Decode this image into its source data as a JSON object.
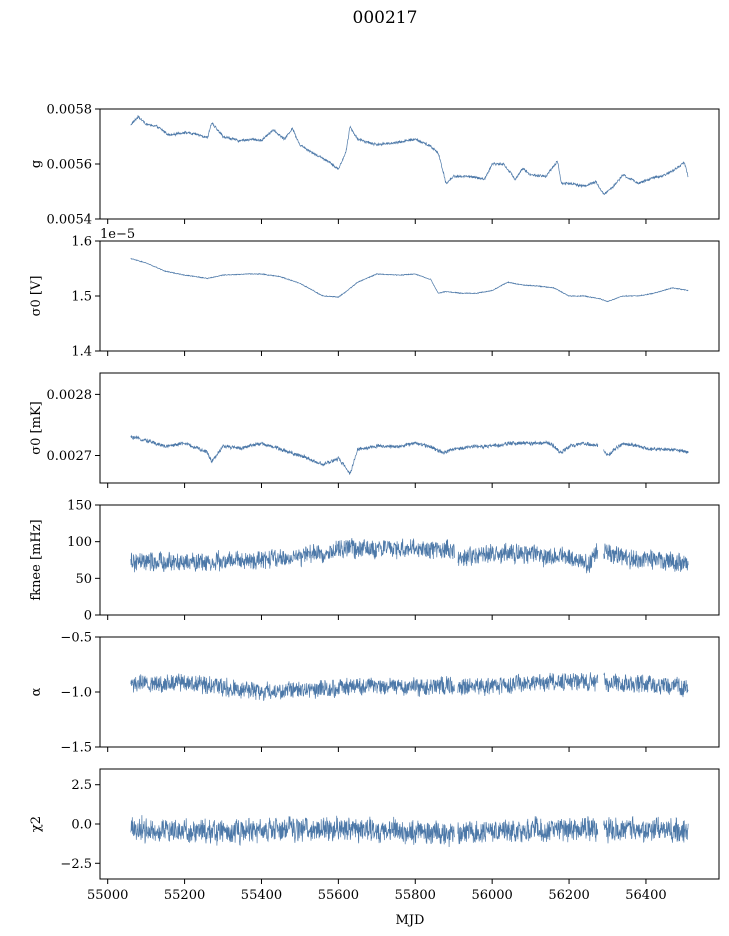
{
  "suptitle": "000217",
  "xlabel": "MJD",
  "colors": {
    "series": "#4c78a8",
    "axes": "#000000",
    "background": "#ffffff"
  },
  "chart_data": [
    {
      "type": "line",
      "ylabel": "g",
      "xlim": [
        54980,
        56590
      ],
      "ylim": [
        0.0054,
        0.0058
      ],
      "yticks": [
        0.0054,
        0.0056,
        0.0058
      ],
      "ytick_labels": [
        "0.0054",
        "0.0056",
        "0.0058"
      ],
      "offset_text": "",
      "noise": 4e-06,
      "x": [
        55060,
        55080,
        55100,
        55130,
        55160,
        55200,
        55240,
        55260,
        55270,
        55300,
        55340,
        55380,
        55400,
        55430,
        55460,
        55480,
        55500,
        55540,
        55580,
        55600,
        55620,
        55630,
        55650,
        55700,
        55760,
        55800,
        55840,
        55860,
        55880,
        55900,
        55940,
        55980,
        56000,
        56030,
        56060,
        56080,
        56100,
        56140,
        56170,
        56180,
        56200,
        56240,
        56270,
        56290,
        56310,
        56340,
        56380,
        56420,
        56440,
        56470,
        56500,
        56510
      ],
      "y": [
        0.005743,
        0.005772,
        0.005745,
        0.005735,
        0.005705,
        0.005715,
        0.005705,
        0.005695,
        0.00575,
        0.0057,
        0.005685,
        0.00569,
        0.005685,
        0.005725,
        0.00569,
        0.00573,
        0.00567,
        0.005635,
        0.005605,
        0.00558,
        0.005645,
        0.005735,
        0.00569,
        0.00567,
        0.00568,
        0.00569,
        0.005665,
        0.00564,
        0.00553,
        0.005555,
        0.005555,
        0.005545,
        0.0056,
        0.0056,
        0.005545,
        0.005585,
        0.00556,
        0.005555,
        0.00561,
        0.00553,
        0.00553,
        0.00552,
        0.005535,
        0.00549,
        0.00551,
        0.00556,
        0.00553,
        0.00555,
        0.005555,
        0.005575,
        0.005605,
        0.005555
      ],
      "gaps": []
    },
    {
      "type": "line",
      "ylabel": "σ0 [V]",
      "xlim": [
        54980,
        56590
      ],
      "ylim": [
        1.4e-05,
        1.6e-05
      ],
      "yticks": [
        1.4e-05,
        1.5e-05,
        1.6e-05
      ],
      "ytick_labels": [
        "1.4",
        "1.5",
        "1.6"
      ],
      "offset_text": "1e−5",
      "noise": 6.5e-09,
      "x": [
        55060,
        55100,
        55150,
        55200,
        55260,
        55300,
        55360,
        55400,
        55450,
        55500,
        55560,
        55600,
        55620,
        55650,
        55700,
        55760,
        55800,
        55840,
        55860,
        55880,
        55920,
        55960,
        56000,
        56040,
        56080,
        56120,
        56160,
        56200,
        56240,
        56280,
        56300,
        56340,
        56380,
        56420,
        56470,
        56510
      ],
      "y": [
        1.568e-05,
        1.56e-05,
        1.545e-05,
        1.538e-05,
        1.532e-05,
        1.538e-05,
        1.54e-05,
        1.54e-05,
        1.535e-05,
        1.523e-05,
        1.5e-05,
        1.498e-05,
        1.508e-05,
        1.525e-05,
        1.54e-05,
        1.538e-05,
        1.54e-05,
        1.53e-05,
        1.505e-05,
        1.508e-05,
        1.505e-05,
        1.505e-05,
        1.51e-05,
        1.525e-05,
        1.52e-05,
        1.518e-05,
        1.515e-05,
        1.5e-05,
        1.5e-05,
        1.495e-05,
        1.49e-05,
        1.5e-05,
        1.5e-05,
        1.505e-05,
        1.515e-05,
        1.51e-05
      ],
      "gaps": []
    },
    {
      "type": "line",
      "ylabel": "σ0 [mK]",
      "xlim": [
        54980,
        56590
      ],
      "ylim": [
        0.002655,
        0.002835
      ],
      "yticks": [
        0.0027,
        0.0028
      ],
      "ytick_labels": [
        "0.0027",
        "0.0028"
      ],
      "offset_text": "",
      "noise": 2.6e-06,
      "x": [
        55060,
        55100,
        55150,
        55200,
        55260,
        55270,
        55300,
        55350,
        55400,
        55450,
        55500,
        55540,
        55560,
        55600,
        55620,
        55630,
        55650,
        55700,
        55760,
        55800,
        55840,
        55870,
        55900,
        55950,
        56000,
        56050,
        56100,
        56150,
        56180,
        56200,
        56240,
        56280,
        56300,
        56340,
        56380,
        56420,
        56470,
        56510
      ],
      "y": [
        0.00273,
        0.002725,
        0.002715,
        0.00272,
        0.002705,
        0.00269,
        0.002715,
        0.002712,
        0.00272,
        0.00271,
        0.0027,
        0.00269,
        0.002685,
        0.002695,
        0.00268,
        0.00267,
        0.00271,
        0.002715,
        0.002715,
        0.00272,
        0.002715,
        0.002705,
        0.00271,
        0.002715,
        0.002715,
        0.00272,
        0.00272,
        0.00272,
        0.002705,
        0.002715,
        0.00272,
        0.002715,
        0.0027,
        0.00272,
        0.002715,
        0.00271,
        0.00271,
        0.002705
      ],
      "gaps": [
        [
          56275,
          56290
        ]
      ]
    },
    {
      "type": "line",
      "ylabel": "fknee [mHz]",
      "xlim": [
        54980,
        56590
      ],
      "ylim": [
        0,
        150
      ],
      "yticks": [
        0,
        50,
        100,
        150
      ],
      "ytick_labels": [
        "0",
        "50",
        "100",
        "150"
      ],
      "offset_text": "",
      "noise": 11,
      "x": [
        55060,
        55200,
        55400,
        55500,
        55600,
        55620,
        55700,
        55800,
        55900,
        55920,
        56000,
        56100,
        56200,
        56250,
        56270,
        56300,
        56320,
        56400,
        56510
      ],
      "y": [
        72,
        72,
        74,
        80,
        88,
        92,
        90,
        90,
        88,
        78,
        85,
        82,
        78,
        68,
        88,
        85,
        80,
        75,
        70
      ],
      "gaps": [
        [
          55902,
          55910
        ],
        [
          56275,
          56290
        ]
      ]
    },
    {
      "type": "line",
      "ylabel": "α",
      "xlim": [
        54980,
        56590
      ],
      "ylim": [
        -1.5,
        -0.5
      ],
      "yticks": [
        -1.5,
        -1.0,
        -0.5
      ],
      "ytick_labels": [
        "−1.5",
        "−1.0",
        "−0.5"
      ],
      "offset_text": "",
      "noise": 0.07,
      "x": [
        55060,
        55150,
        55200,
        55300,
        55400,
        55500,
        55600,
        55700,
        55800,
        55900,
        56000,
        56100,
        56200,
        56300,
        56400,
        56510
      ],
      "y": [
        -0.93,
        -0.92,
        -0.9,
        -0.95,
        -1.0,
        -0.98,
        -0.96,
        -0.95,
        -0.95,
        -0.95,
        -0.95,
        -0.92,
        -0.9,
        -0.92,
        -0.93,
        -0.95
      ],
      "gaps": [
        [
          55902,
          55910
        ],
        [
          56275,
          56290
        ]
      ]
    },
    {
      "type": "line",
      "ylabel": "χ2",
      "xlim": [
        54980,
        56590
      ],
      "ylim": [
        -3.5,
        3.5
      ],
      "yticks": [
        -2.5,
        0.0,
        2.5
      ],
      "ytick_labels": [
        "−2.5",
        "0.0",
        "2.5"
      ],
      "offset_text": "",
      "noise": 0.65,
      "x": [
        55060,
        55300,
        55600,
        55900,
        56200,
        56510
      ],
      "y": [
        -0.3,
        -0.5,
        -0.3,
        -0.6,
        -0.3,
        -0.5
      ],
      "gaps": [
        [
          55902,
          55910
        ],
        [
          56275,
          56290
        ]
      ]
    }
  ],
  "xticks": [
    55000,
    55200,
    55400,
    55600,
    55800,
    56000,
    56200,
    56400
  ],
  "xtick_labels": [
    "55000",
    "55200",
    "55400",
    "55600",
    "55800",
    "56000",
    "56200",
    "56400"
  ]
}
